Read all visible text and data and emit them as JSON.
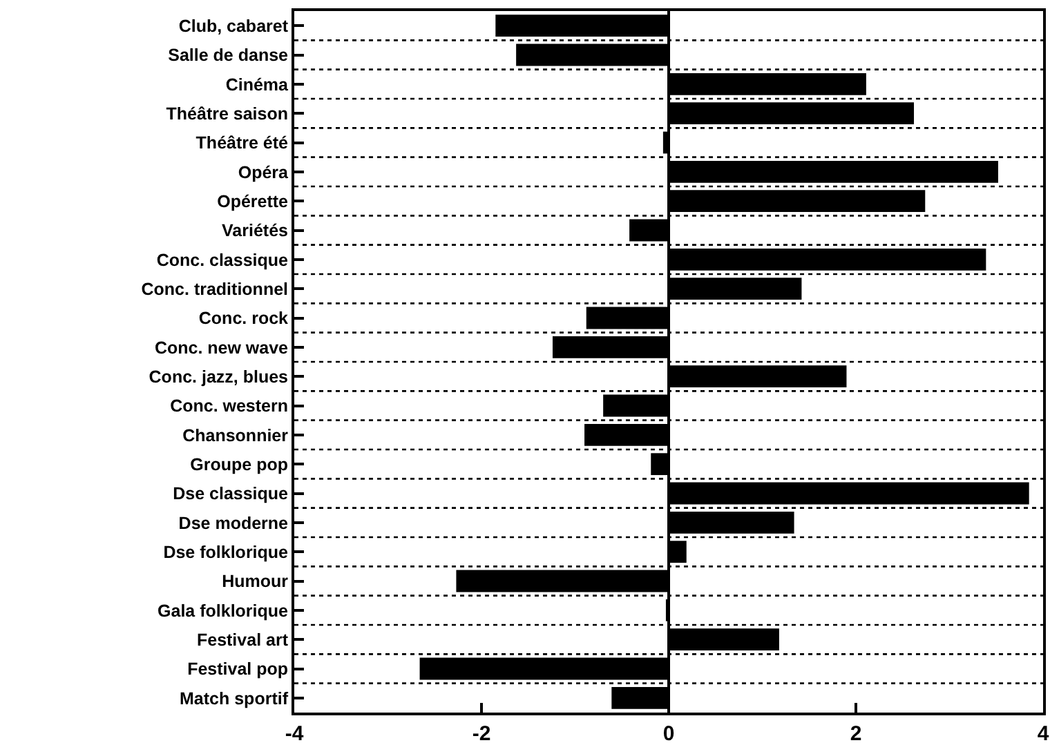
{
  "chart_data": {
    "type": "bar",
    "orientation": "horizontal",
    "categories": [
      "Club, cabaret",
      "Salle de danse",
      "Cinéma",
      "Théâtre saison",
      "Théâtre été",
      "Opéra",
      "Opérette",
      "Variétés",
      "Conc. classique",
      "Conc. traditionnel",
      "Conc. rock",
      "Conc. new wave",
      "Conc. jazz, blues",
      "Conc. western",
      "Chansonnier",
      "Groupe pop",
      "Dse classique",
      "Dse moderne",
      "Dse folklorique",
      "Humour",
      "Gala folklorique",
      "Festival art",
      "Festival pop",
      "Match sportif"
    ],
    "values": [
      -1.85,
      -1.63,
      2.11,
      2.62,
      -0.06,
      3.52,
      2.74,
      -0.42,
      3.39,
      1.42,
      -0.88,
      -1.24,
      1.9,
      -0.7,
      -0.9,
      -0.19,
      3.85,
      1.34,
      0.19,
      -2.27,
      -0.03,
      1.18,
      -2.66,
      -0.61
    ],
    "color": "#000000",
    "xlim": [
      -4,
      4
    ],
    "xticks": [
      -4,
      -2,
      0,
      2,
      4
    ],
    "grid": "y"
  }
}
